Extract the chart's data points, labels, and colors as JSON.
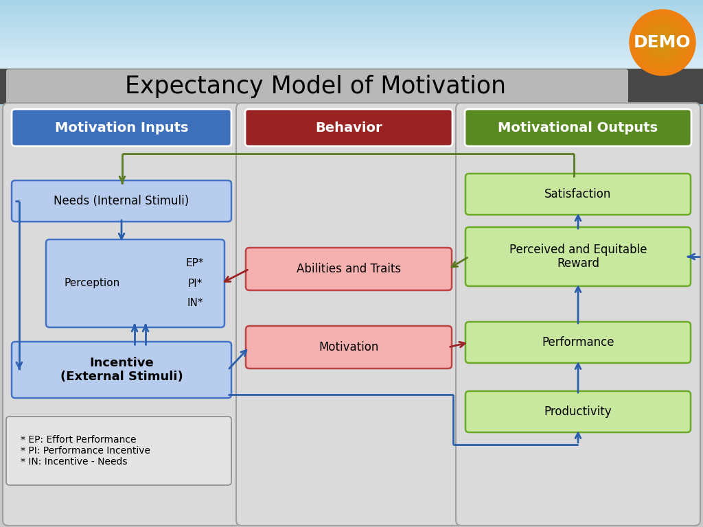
{
  "title": "Expectancy Model of Motivation",
  "col1_header": "Motivation Inputs",
  "col2_header": "Behavior",
  "col3_header": "Motivational Outputs",
  "col1_header_color": "#3d6fbb",
  "col2_header_color": "#992222",
  "col3_header_color": "#5a8a22",
  "box_needs": "Needs (Internal Stimuli)",
  "box_incentive": "Incentive\n(External Stimuli)",
  "box_footnote": "* EP: Effort Performance\n* PI: Performance Incentive\n* IN: Incentive - Needs",
  "box_abilities": "Abilities and Traits",
  "box_motivation": "Motivation",
  "box_satisfaction": "Satisfaction",
  "box_perceived": "Perceived and Equitable\nReward",
  "box_performance": "Performance",
  "box_productivity": "Productivity",
  "light_blue_fill": "#b8ccee",
  "light_blue_border": "#4472c4",
  "light_pink_fill": "#f5b0b0",
  "light_pink_border": "#bb4444",
  "light_green_fill": "#c8e8a0",
  "light_green_border": "#6aaa28",
  "arrow_blue": "#2b5fad",
  "arrow_green": "#5a7a20",
  "arrow_red": "#992222",
  "sky_top": "#a8d4e8",
  "sky_bottom": "#d0e8f4",
  "header_bar": "#484848",
  "title_bg": "#c0c0c0",
  "panel1_bg": "#d8d8d8",
  "panel2_bg": "#d8d8d8",
  "panel3_bg": "#d8d8d8",
  "panel_border": "#a0a0a0",
  "footnote_bg": "#e4e4e4",
  "footnote_border": "#909090"
}
